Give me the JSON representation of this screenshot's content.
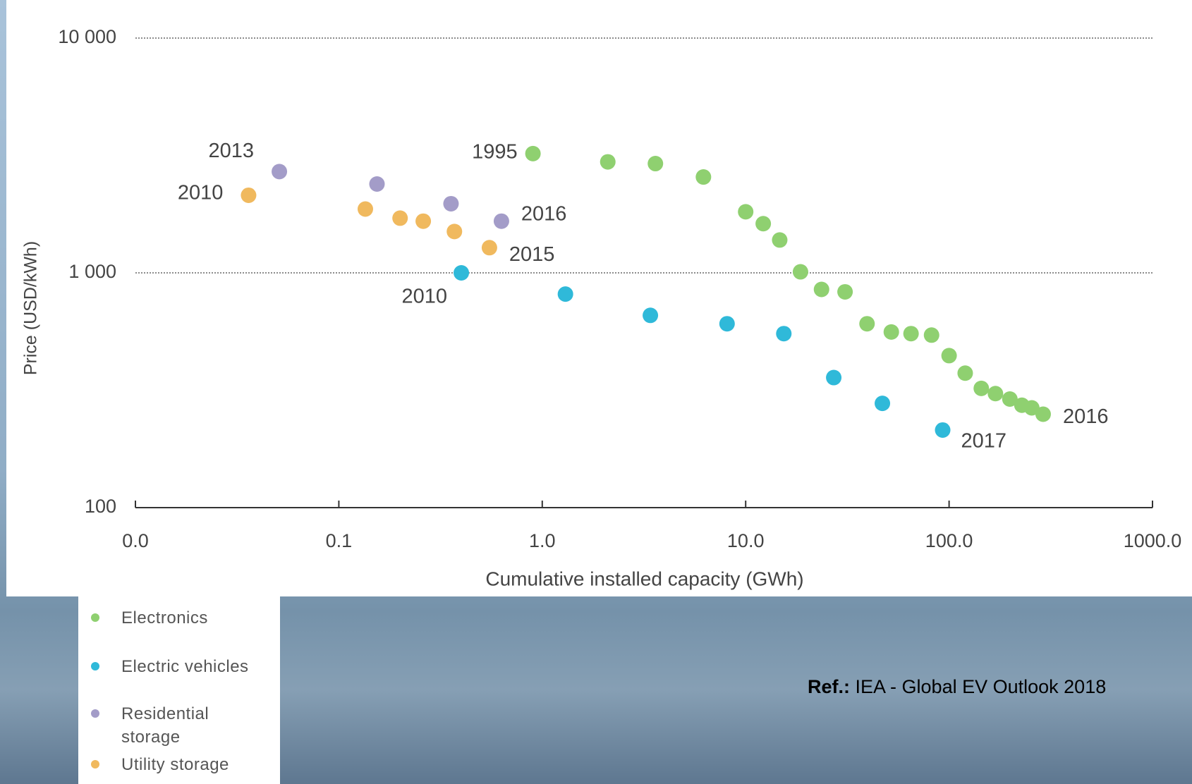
{
  "chart_data": {
    "type": "scatter",
    "x_label": "Cumulative installed capacity (GWh)",
    "y_label": "Price (USD/kWh)",
    "log_x": true,
    "log_y": true,
    "grid": true,
    "xlim": [
      0.01,
      1000
    ],
    "xticks": [
      {
        "value": 0.01,
        "label": "0.0"
      },
      {
        "value": 0.1,
        "label": "0.1"
      },
      {
        "value": 1,
        "label": "1.0"
      },
      {
        "value": 10,
        "label": "10.0"
      },
      {
        "value": 100,
        "label": "100.0"
      },
      {
        "value": 1000,
        "label": "1000.0"
      }
    ],
    "ylim": [
      100,
      10000
    ],
    "yticks": [
      100,
      {
        "value": 1000,
        "label": "1 000"
      },
      {
        "value": 10000,
        "label": "10 000"
      }
    ],
    "series": [
      {
        "name": "Electronics",
        "color": "#8fd070",
        "x": [
          0.9,
          2.1,
          3.6,
          6.2,
          10,
          12.2,
          14.7,
          18.6,
          23.6,
          30.8,
          39.5,
          52,
          65,
          82,
          100,
          120,
          144,
          169,
          199,
          228,
          255,
          290
        ],
        "values": [
          3220,
          2970,
          2920,
          2560,
          1820,
          1620,
          1380,
          1010,
          850,
          830,
          607,
          560,
          551,
          543,
          444,
          374,
          322,
          306,
          290,
          273,
          266,
          250
        ]
      },
      {
        "name": "Electric vehicles",
        "color": "#2fb9d9",
        "x": [
          0.4,
          1.3,
          3.4,
          8.1,
          15.4,
          27.1,
          47,
          93
        ],
        "values": [
          1000,
          812,
          659,
          607,
          551,
          358,
          278,
          214
        ]
      },
      {
        "name": "Residential storage",
        "color": "#a39cc8",
        "x": [
          0.051,
          0.154,
          0.356,
          0.63
        ],
        "values": [
          2700,
          2390,
          1970,
          1660
        ]
      },
      {
        "name": "Utility storage",
        "color": "#f0b95e",
        "x": [
          0.036,
          0.135,
          0.2,
          0.26,
          0.37,
          0.55
        ],
        "values": [
          2140,
          1870,
          1710,
          1660,
          1500,
          1280
        ]
      }
    ],
    "annotations": [
      "2013",
      "2010",
      "1995",
      "2016",
      "2015",
      "2010",
      "2016",
      "2017"
    ]
  },
  "footer": {
    "label": "Ref.:",
    "text": "IEA - Global EV Outlook 2018"
  }
}
